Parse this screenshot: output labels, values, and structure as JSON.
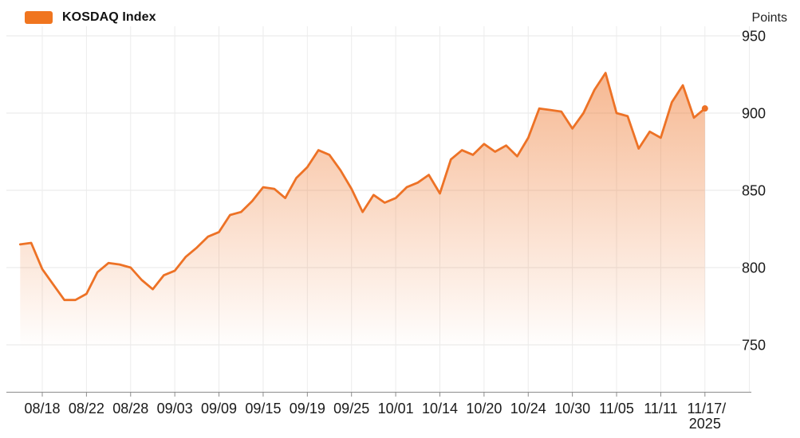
{
  "legend": {
    "items": [
      {
        "label": "KOSDAQ Index",
        "swatch_color": "#f0751f"
      }
    ]
  },
  "y_axis_unit": "Points",
  "chart_data": {
    "type": "area",
    "title": "KOSDAQ Index",
    "ylabel": "Points",
    "xlabel": "",
    "grid": true,
    "legend_position": "top-left",
    "line_color": "#ed7226",
    "fill_color_top": "rgba(237,109,30,0.55)",
    "fill_color_bottom": "rgba(237,109,30,0)",
    "marker_on_last_point": true,
    "ylim": [
      721,
      953
    ],
    "y_ticks": [
      750,
      800,
      850,
      900,
      950
    ],
    "x_ticks": [
      {
        "label": "08/18"
      },
      {
        "label": "08/22"
      },
      {
        "label": "08/28"
      },
      {
        "label": "09/03"
      },
      {
        "label": "09/09"
      },
      {
        "label": "09/15"
      },
      {
        "label": "09/19"
      },
      {
        "label": "09/25"
      },
      {
        "label": "10/01"
      },
      {
        "label": "10/14"
      },
      {
        "label": "10/20"
      },
      {
        "label": "10/24"
      },
      {
        "label": "10/30"
      },
      {
        "label": "11/05"
      },
      {
        "label": "11/11"
      },
      {
        "label": "11/17/",
        "line2": "2025",
        "date": "11/17"
      }
    ],
    "series": [
      {
        "name": "KOSDAQ Index",
        "x": [
          "08/13",
          "08/14",
          "08/18",
          "08/19",
          "08/20",
          "08/21",
          "08/22",
          "08/25",
          "08/26",
          "08/27",
          "08/28",
          "08/29",
          "09/01",
          "09/02",
          "09/03",
          "09/04",
          "09/05",
          "09/08",
          "09/09",
          "09/10",
          "09/11",
          "09/12",
          "09/15",
          "09/16",
          "09/17",
          "09/18",
          "09/19",
          "09/22",
          "09/23",
          "09/24",
          "09/25",
          "09/26",
          "09/29",
          "09/30",
          "10/01",
          "10/02",
          "10/10",
          "10/13",
          "10/14",
          "10/15",
          "10/16",
          "10/17",
          "10/20",
          "10/21",
          "10/22",
          "10/23",
          "10/24",
          "10/27",
          "10/28",
          "10/29",
          "10/30",
          "10/31",
          "11/03",
          "11/04",
          "11/05",
          "11/06",
          "11/07",
          "11/10",
          "11/11",
          "11/12",
          "11/13",
          "11/14",
          "11/17"
        ],
        "values": [
          815,
          816,
          799,
          789,
          779,
          779,
          783,
          797,
          803,
          802,
          800,
          792,
          786,
          795,
          798,
          807,
          813,
          820,
          823,
          834,
          836,
          843,
          852,
          851,
          845,
          858,
          865,
          876,
          873,
          863,
          851,
          836,
          847,
          842,
          845,
          852,
          855,
          860,
          848,
          870,
          876,
          873,
          880,
          875,
          879,
          872,
          884,
          903,
          902,
          901,
          890,
          900,
          915,
          926,
          900,
          898,
          877,
          888,
          884,
          907,
          918,
          897,
          903
        ]
      }
    ]
  }
}
